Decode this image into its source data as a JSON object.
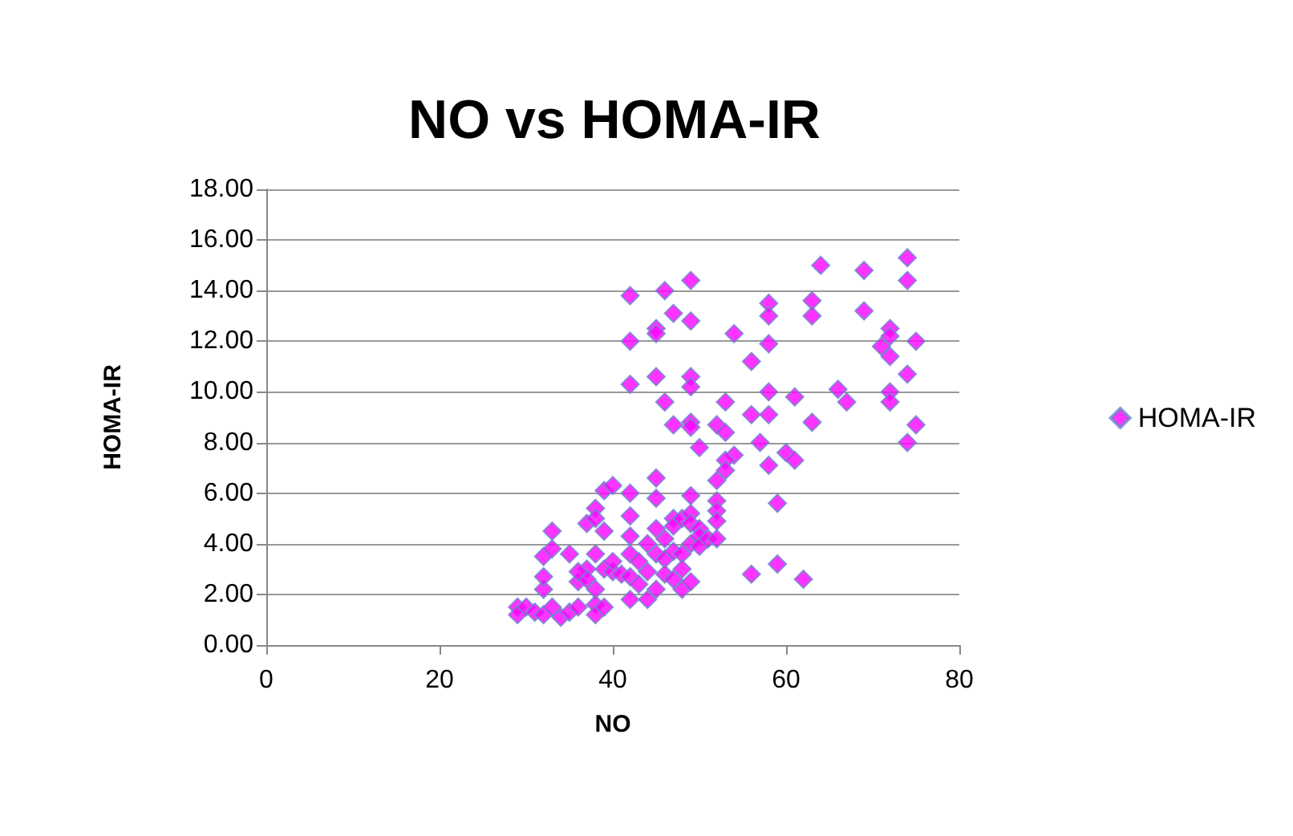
{
  "chart_data": {
    "type": "scatter",
    "title": "NO vs HOMA-IR",
    "xlabel": "NO",
    "ylabel": "HOMA-IR",
    "xlim": [
      0,
      80
    ],
    "xticks": [
      0,
      20,
      40,
      60,
      80
    ],
    "ylim": [
      0,
      18
    ],
    "yticks": [
      {
        "value": 0,
        "label": "0.00"
      },
      {
        "value": 2,
        "label": "2.00"
      },
      {
        "value": 4,
        "label": "4.00"
      },
      {
        "value": 6,
        "label": "6.00"
      },
      {
        "value": 8,
        "label": "8.00"
      },
      {
        "value": 10,
        "label": "10.00"
      },
      {
        "value": 12,
        "label": "12.00"
      },
      {
        "value": 14,
        "label": "14.00"
      },
      {
        "value": 16,
        "label": "16.00"
      },
      {
        "value": 18,
        "label": "18.00"
      }
    ],
    "grid": "y",
    "legend": "right",
    "marker": "diamond",
    "series": [
      {
        "name": "HOMA-IR",
        "color": "#ff00ff",
        "x": [
          42,
          42,
          42,
          45,
          45,
          45,
          46,
          46,
          47,
          47,
          49,
          49,
          49,
          49,
          49,
          49,
          50,
          52,
          53,
          53,
          54,
          54,
          53,
          53,
          52,
          56,
          56,
          57,
          58,
          58,
          58,
          58,
          58,
          58,
          59,
          60,
          61,
          61,
          63,
          63,
          63,
          64,
          66,
          67,
          69,
          69,
          72,
          72,
          71,
          72,
          72,
          72,
          74,
          74,
          75,
          74,
          75,
          74,
          56,
          59,
          62,
          29,
          29,
          30,
          31,
          32,
          32,
          32,
          32,
          33,
          33,
          33,
          34,
          35,
          35,
          36,
          36,
          37,
          37,
          37,
          38,
          38,
          38,
          38,
          38,
          38,
          39,
          39,
          39,
          39,
          40,
          40,
          41,
          42,
          42,
          42,
          42,
          42,
          42,
          43,
          44,
          44,
          44,
          45,
          45,
          45,
          45,
          45,
          46,
          46,
          46,
          47,
          47,
          47,
          47,
          48,
          48,
          48,
          48,
          49,
          49,
          49,
          49,
          49,
          50,
          50,
          50,
          51,
          52,
          52,
          52,
          52,
          36,
          40,
          43
        ],
        "values": [
          13.8,
          12,
          10.3,
          12.5,
          12.3,
          10.6,
          14,
          9.6,
          13.1,
          8.7,
          14.4,
          12.8,
          10.6,
          10.2,
          8.8,
          8.6,
          7.8,
          8.7,
          8.4,
          9.6,
          12.3,
          7.5,
          7.3,
          6.9,
          6.5,
          11.2,
          9.1,
          8,
          13.5,
          13,
          11.9,
          10,
          9.1,
          7.1,
          5.6,
          7.6,
          9.8,
          7.3,
          13.6,
          13,
          8.8,
          15,
          10.1,
          9.6,
          14.8,
          13.2,
          12.5,
          12.2,
          11.8,
          11.4,
          10,
          9.6,
          15.3,
          14.4,
          12,
          10.7,
          8.7,
          8,
          2.8,
          3.2,
          2.6,
          1.5,
          1.2,
          1.5,
          1.3,
          1.2,
          2.2,
          2.7,
          3.5,
          3.8,
          4.5,
          1.5,
          1.1,
          1.3,
          3.6,
          2.5,
          1.5,
          4.8,
          3,
          2.6,
          5.4,
          5,
          3.6,
          2.2,
          1.6,
          1.2,
          6.1,
          4.5,
          3,
          1.5,
          6.3,
          2.9,
          2.8,
          6,
          5.1,
          4.3,
          3.6,
          2.7,
          1.8,
          3.3,
          4,
          2.9,
          1.8,
          6.6,
          5.8,
          4.6,
          3.6,
          2.2,
          4.2,
          3.4,
          2.8,
          5,
          4.7,
          3.7,
          2.6,
          5,
          3.6,
          3,
          2.2,
          5.9,
          5.2,
          4.8,
          4,
          2.5,
          4.6,
          4.3,
          3.9,
          4.2,
          5.7,
          5.3,
          4.9,
          4.2,
          2.9,
          3.3,
          2.4
        ]
      }
    ]
  }
}
